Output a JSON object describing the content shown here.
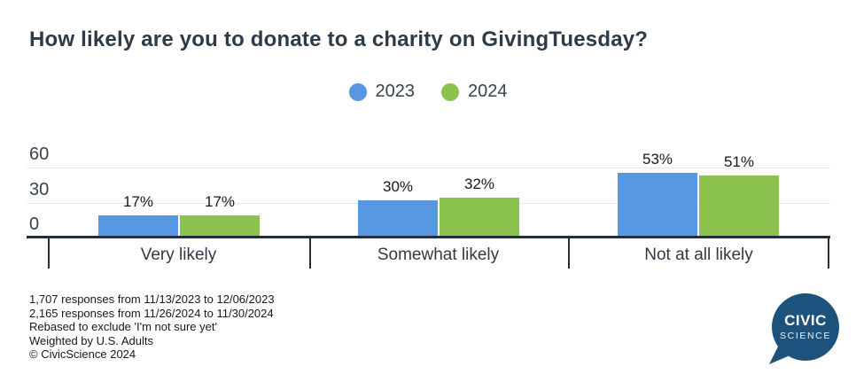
{
  "chart_data": {
    "type": "bar",
    "title": "How likely are you to donate to a charity on GivingTuesday?",
    "categories": [
      "Very likely",
      "Somewhat likely",
      "Not at all likely"
    ],
    "series": [
      {
        "name": "2023",
        "color": "#5897e2",
        "values": [
          17,
          30,
          53
        ]
      },
      {
        "name": "2024",
        "color": "#8bc24d",
        "values": [
          17,
          32,
          51
        ]
      }
    ],
    "value_suffix": "%",
    "y_ticks": [
      0,
      30,
      60
    ],
    "ylim": [
      0,
      67.5
    ],
    "grid": "horizontal",
    "legend_position": "top-center"
  },
  "footer": {
    "lines": [
      "1,707 responses from 11/13/2023 to 12/06/2023",
      "2,165 responses from 11/26/2024 to 11/30/2024",
      "Rebased to exclude 'I'm not sure yet'",
      "Weighted by U.S. Adults",
      "© CivicScience 2024"
    ]
  },
  "logo": {
    "line1": "CIVIC",
    "line2": "SCIENCE",
    "color": "#1d527d"
  },
  "colors": {
    "title_text": "#2e3a48",
    "axis": "#252f3a",
    "gridline": "#e8e8e8",
    "bar_2023": "#5897e2",
    "bar_2024": "#8bc24d",
    "logo_navy": "#1d527d"
  }
}
